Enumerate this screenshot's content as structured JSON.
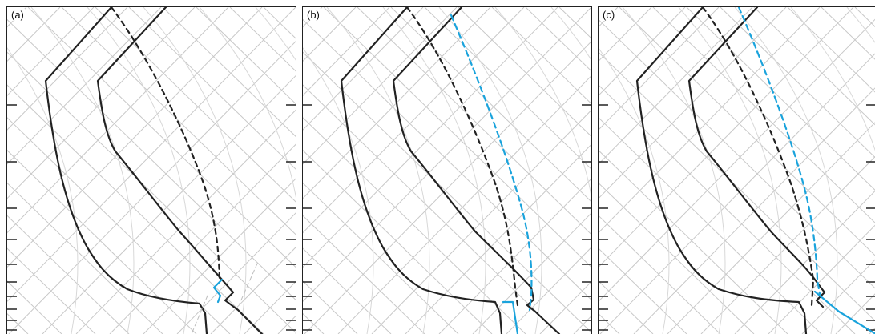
{
  "panels": [
    {
      "label": "(a)"
    },
    {
      "label": "(b)"
    },
    {
      "label": "(c)"
    }
  ],
  "colors": {
    "grid": "#c8c8c8",
    "curve": "#222222",
    "highlight": "#1aa3dc",
    "frame": "#222222"
  }
}
